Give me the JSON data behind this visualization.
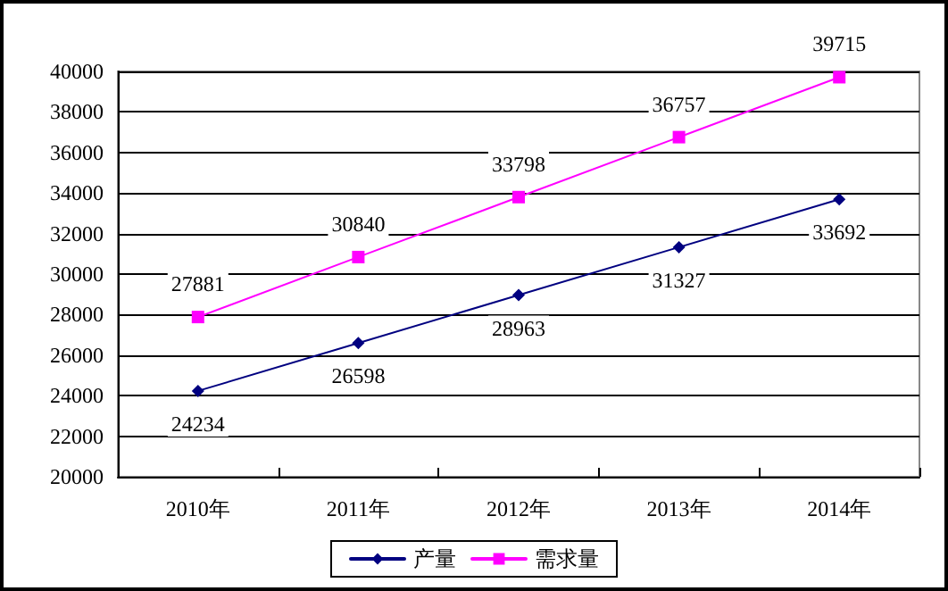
{
  "chart_data": {
    "type": "line",
    "categories": [
      "2010年",
      "2011年",
      "2012年",
      "2013年",
      "2014年"
    ],
    "series": [
      {
        "name": "产量",
        "color": "#000080",
        "marker": "diamond",
        "values": [
          24234,
          26598,
          28963,
          31327,
          33692
        ]
      },
      {
        "name": "需求量",
        "color": "#ff00ff",
        "marker": "square",
        "values": [
          27881,
          30840,
          33798,
          36757,
          39715
        ]
      }
    ],
    "ylim": [
      20000,
      40000
    ],
    "yticks": [
      20000,
      22000,
      24000,
      26000,
      28000,
      30000,
      32000,
      34000,
      36000,
      38000,
      40000
    ],
    "grid": "y",
    "legend": "bottom",
    "data_labels": true,
    "line_style": "solid"
  }
}
